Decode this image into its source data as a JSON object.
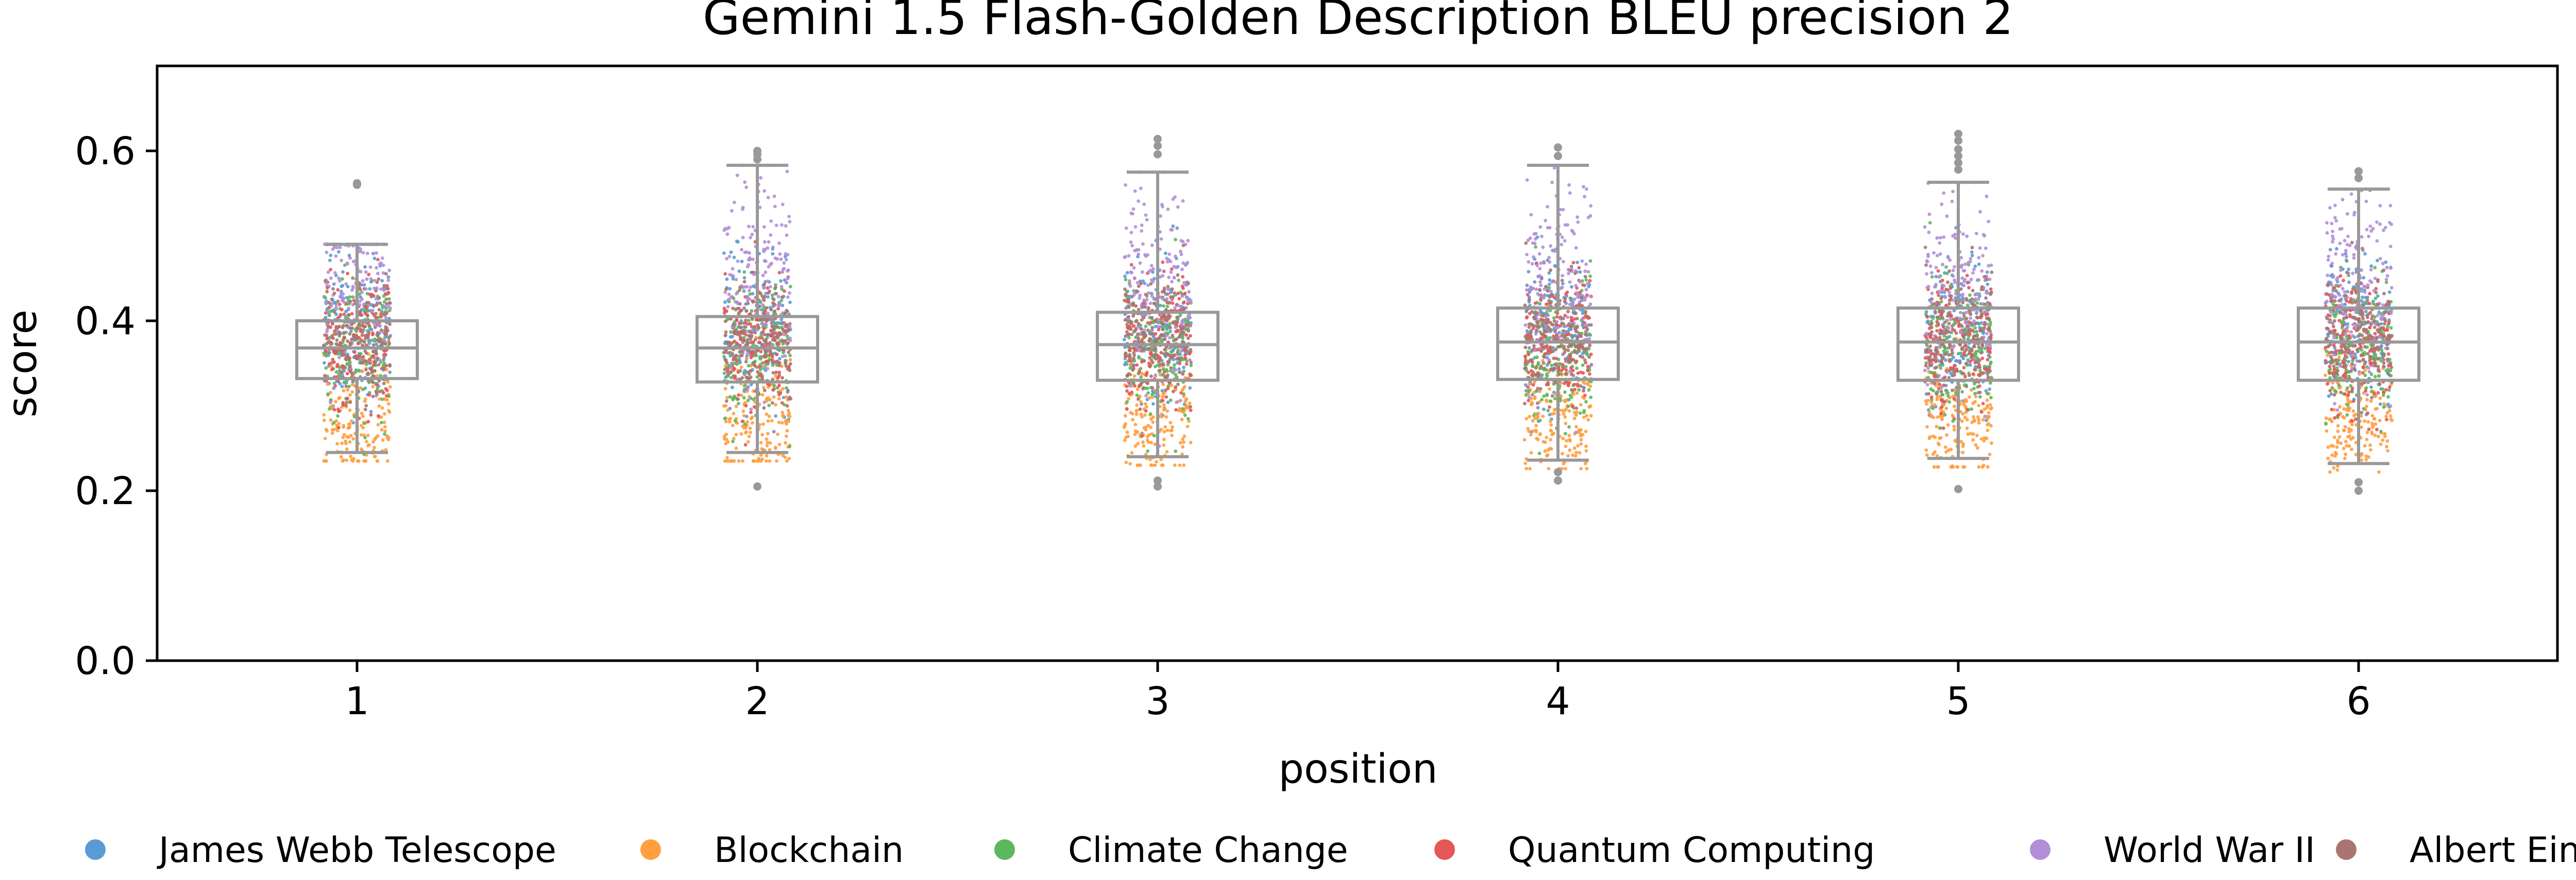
{
  "chart_data": {
    "type": "box-strip",
    "title": "Gemini 1.5 Flash-Golden Description BLEU precision 2",
    "xlabel": "position",
    "ylabel": "score",
    "categories": [
      "1",
      "2",
      "3",
      "4",
      "5",
      "6"
    ],
    "ylim": [
      0.0,
      0.7
    ],
    "yticks": [
      0.0,
      0.2,
      0.4,
      0.6
    ],
    "y_tick_labels": [
      "0.0",
      "0.2",
      "0.4",
      "0.6"
    ],
    "grid": false,
    "legend_position": "bottom",
    "box_color": "#999999",
    "boxes": [
      {
        "position": "1",
        "whisker_low": 0.245,
        "q1": 0.332,
        "median": 0.368,
        "q3": 0.4,
        "whisker_high": 0.49,
        "outliers": [
          0.56,
          0.562
        ]
      },
      {
        "position": "2",
        "whisker_low": 0.245,
        "q1": 0.328,
        "median": 0.368,
        "q3": 0.405,
        "whisker_high": 0.583,
        "outliers": [
          0.59,
          0.596,
          0.6,
          0.205
        ]
      },
      {
        "position": "3",
        "whisker_low": 0.24,
        "q1": 0.33,
        "median": 0.372,
        "q3": 0.41,
        "whisker_high": 0.575,
        "outliers": [
          0.596,
          0.606,
          0.614,
          0.205,
          0.212
        ]
      },
      {
        "position": "4",
        "whisker_low": 0.236,
        "q1": 0.331,
        "median": 0.375,
        "q3": 0.415,
        "whisker_high": 0.583,
        "outliers": [
          0.594,
          0.604,
          0.212,
          0.222
        ]
      },
      {
        "position": "5",
        "whisker_low": 0.238,
        "q1": 0.33,
        "median": 0.375,
        "q3": 0.415,
        "whisker_high": 0.563,
        "outliers": [
          0.578,
          0.586,
          0.594,
          0.602,
          0.612,
          0.62,
          0.202
        ]
      },
      {
        "position": "6",
        "whisker_low": 0.232,
        "q1": 0.33,
        "median": 0.375,
        "q3": 0.415,
        "whisker_high": 0.555,
        "outliers": [
          0.568,
          0.576,
          0.2,
          0.21
        ]
      }
    ],
    "series": [
      {
        "name": "James Webb Telescope",
        "color": "#5b9bd5",
        "center": 0.39,
        "spread": 0.045
      },
      {
        "name": "Blockchain",
        "color": "#ff9f40",
        "center": 0.285,
        "spread": 0.035
      },
      {
        "name": "Climate Change",
        "color": "#5cb85c",
        "center": 0.365,
        "spread": 0.04
      },
      {
        "name": "Quantum Computing",
        "color": "#e45756",
        "center": 0.375,
        "spread": 0.04
      },
      {
        "name": "World War II",
        "color": "#b38fd8",
        "center": 0.45,
        "spread": 0.06
      },
      {
        "name": "Albert Einstein",
        "color": "#a97570",
        "center": 0.38,
        "spread": 0.035
      }
    ],
    "points_per_series_per_position": 170
  }
}
